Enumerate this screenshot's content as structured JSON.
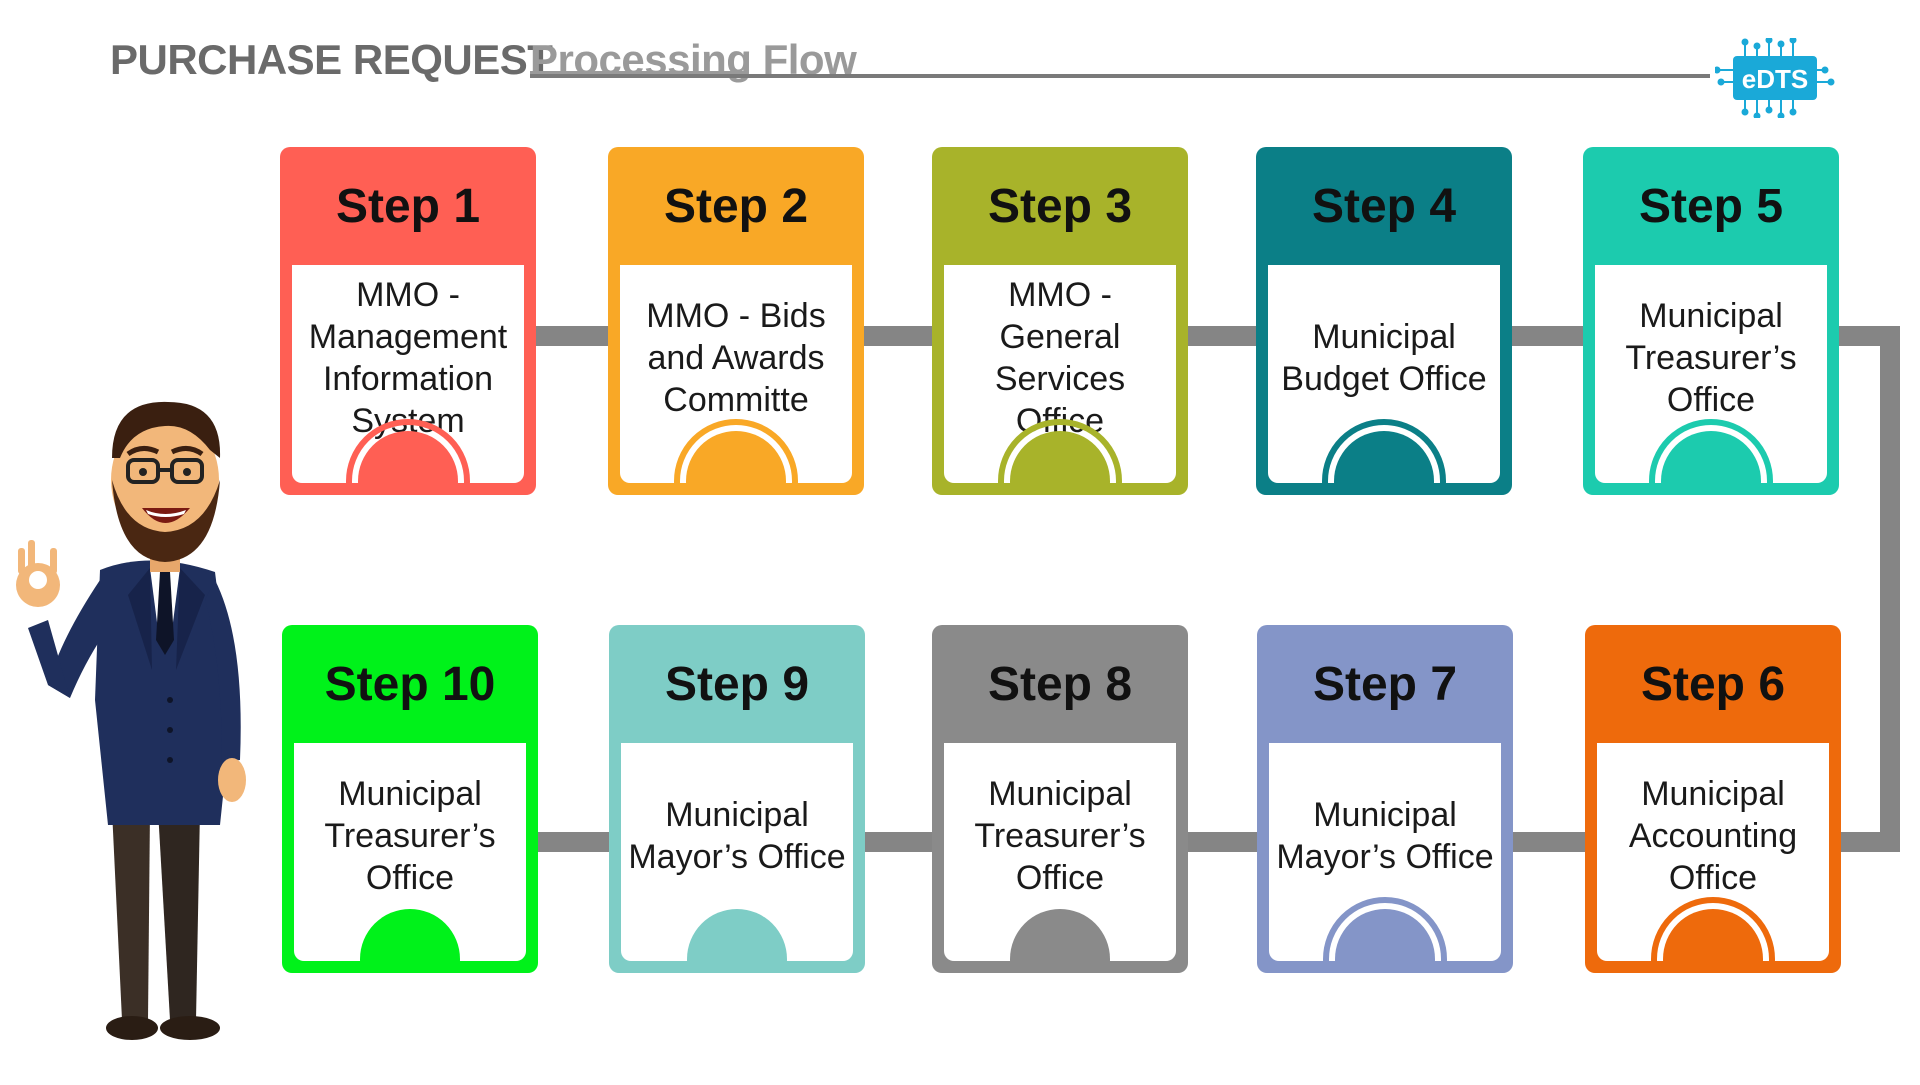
{
  "header": {
    "title_bold": "PURCHASE REQUEST",
    "title_light": "Processing Flow",
    "logo_text": "eDTS"
  },
  "steps": [
    {
      "label": "Step 1",
      "office": "MMO - Management Information System",
      "color": "#ff5f54"
    },
    {
      "label": "Step 2",
      "office": "MMO - Bids and Awards Committe",
      "color": "#f9a826"
    },
    {
      "label": "Step 3",
      "office": "MMO - General Services Office",
      "color": "#a8b32a"
    },
    {
      "label": "Step 4",
      "office": "Municipal Budget Office",
      "color": "#0b7f87"
    },
    {
      "label": "Step 5",
      "office": "Municipal Treasurer’s Office",
      "color": "#1ccbae"
    },
    {
      "label": "Step 6",
      "office": "Municipal Accounting Office",
      "color": "#ee6a0c"
    },
    {
      "label": "Step 7",
      "office": "Municipal Mayor’s Office",
      "color": "#8495c8"
    },
    {
      "label": "Step 8",
      "office": "Municipal Treasurer’s Office",
      "color": "#8a8a8a"
    },
    {
      "label": "Step 9",
      "office": "Municipal Mayor’s Office",
      "color": "#7ecdc6"
    },
    {
      "label": "Step 10",
      "office": "Municipal Treasurer’s Office",
      "color": "#00f21a"
    }
  ],
  "colors": {
    "connector": "#858585",
    "title_bold": "#6a6a6a",
    "title_light": "#9a9a9a",
    "logo": "#1aa9d8"
  },
  "icons": {
    "character": "businessman-ok-gesture-illustration",
    "logo": "edts-circuit-logo"
  }
}
